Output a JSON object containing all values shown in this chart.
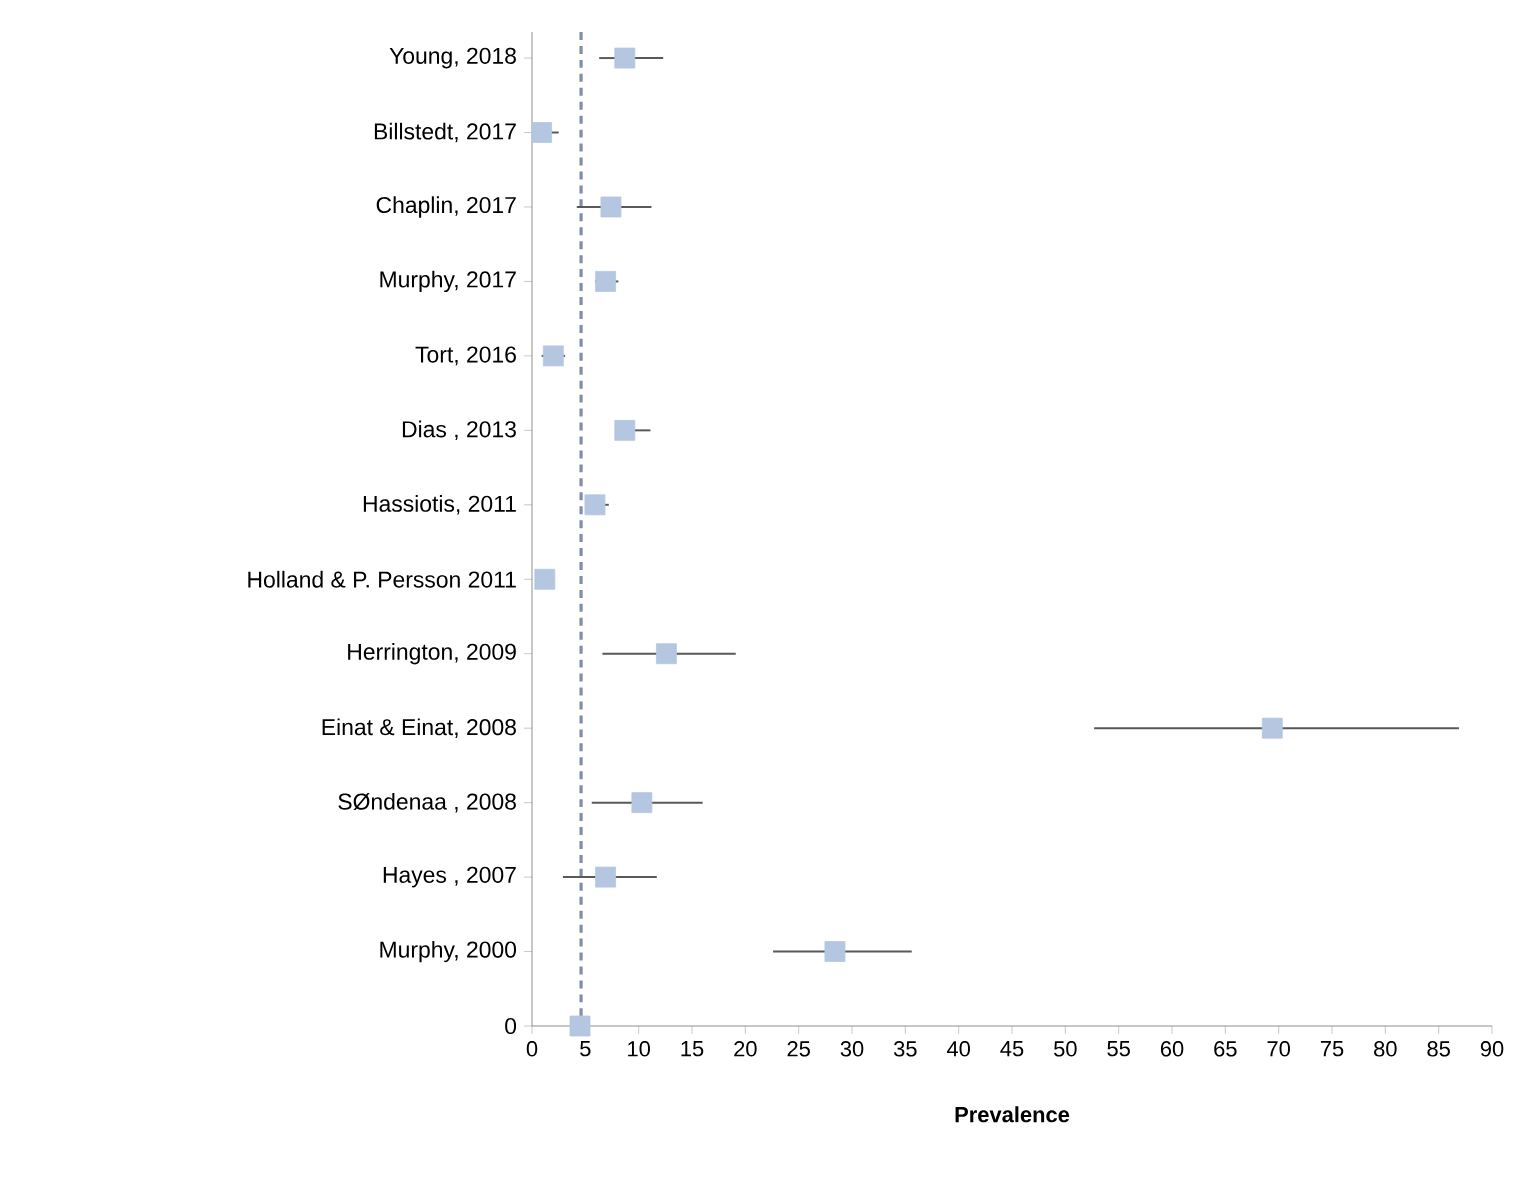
{
  "chart_data": {
    "type": "scatter",
    "orientation": "horizontal",
    "xlabel": "Prevalence",
    "categories": [
      "Young, 2018",
      "Billstedt, 2017",
      "Chaplin, 2017",
      "Murphy, 2017",
      "Tort, 2016",
      "Dias , 2013",
      "Hassiotis, 2011",
      "Holland & P. Persson 2011",
      "Herrington, 2009",
      "Einat & Einat, 2008",
      "SØndenaa , 2008",
      "Hayes , 2007",
      "Murphy, 2000",
      "0"
    ],
    "values": [
      8.7,
      0.9,
      7.4,
      6.9,
      2.0,
      8.7,
      5.9,
      1.2,
      12.6,
      69.4,
      10.3,
      6.9,
      28.4,
      4.5
    ],
    "errors": [
      [
        6.3,
        12.3
      ],
      [
        0.9,
        2.5
      ],
      [
        4.2,
        11.2
      ],
      [
        5.9,
        8.1
      ],
      [
        0.9,
        3.1
      ],
      [
        7.8,
        11.1
      ],
      [
        5.0,
        7.2
      ],
      null,
      [
        6.6,
        19.1
      ],
      [
        52.7,
        86.9
      ],
      [
        5.6,
        16.0
      ],
      [
        2.9,
        11.7
      ],
      [
        22.6,
        35.6
      ],
      null
    ],
    "color": "#b4c6e0",
    "marker": "square",
    "xlim": [
      0,
      90
    ],
    "xticks": [
      0,
      5,
      10,
      15,
      20,
      25,
      30,
      35,
      40,
      45,
      50,
      55,
      60,
      65,
      70,
      75,
      80,
      85,
      90
    ],
    "ref_lines": [
      {
        "axis": "x",
        "value": 4.6,
        "color": "#7f8fa6",
        "line_style": "dashed"
      }
    ],
    "grid": false
  }
}
